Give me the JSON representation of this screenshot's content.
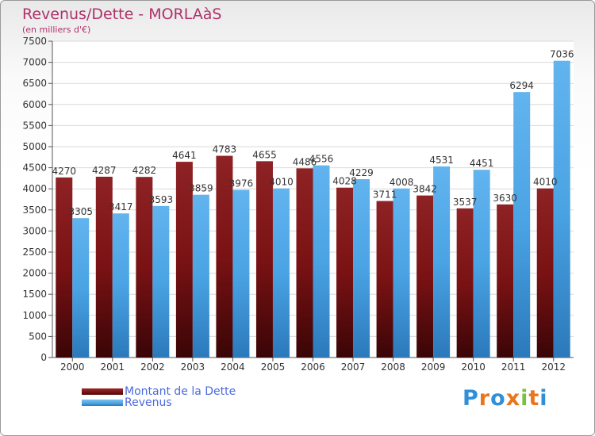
{
  "header": {
    "title": "Revenus/Dette - MORLAàS",
    "subtitle": "(en milliers d'€)"
  },
  "colors": {
    "dette": "#7a1214",
    "revenus": "#4aa3e3"
  },
  "logo": {
    "text": "Proxiti",
    "letters": [
      "P",
      "r",
      "o",
      "x",
      "i",
      "t",
      "i"
    ],
    "colors": [
      "#2f8fd8",
      "#e9761e",
      "#2f8fd8",
      "#e9761e",
      "#7fbf3f",
      "#e9761e",
      "#2f8fd8"
    ]
  },
  "chart_data": {
    "type": "bar",
    "title": "Revenus/Dette - MORLAàS",
    "subtitle": "(en milliers d'€)",
    "categories": [
      "2000",
      "2001",
      "2002",
      "2003",
      "2004",
      "2005",
      "2006",
      "2007",
      "2008",
      "2009",
      "2010",
      "2011",
      "2012"
    ],
    "series": [
      {
        "name": "Montant de la Dette",
        "values": [
          4270,
          4287,
          4282,
          4641,
          4783,
          4655,
          4486,
          4028,
          3711,
          3842,
          3537,
          3630,
          4010
        ]
      },
      {
        "name": "Revenus",
        "values": [
          3305,
          3417,
          3593,
          3859,
          3976,
          4010,
          4556,
          4229,
          4008,
          4531,
          4451,
          6294,
          7036
        ]
      }
    ],
    "ylim": [
      0,
      7500
    ],
    "yticks": [
      0,
      500,
      1000,
      1500,
      2000,
      2500,
      3000,
      3500,
      4000,
      4500,
      5000,
      5500,
      6000,
      6500,
      7000,
      7500
    ],
    "grid": true,
    "legend_position": "bottom-left"
  }
}
